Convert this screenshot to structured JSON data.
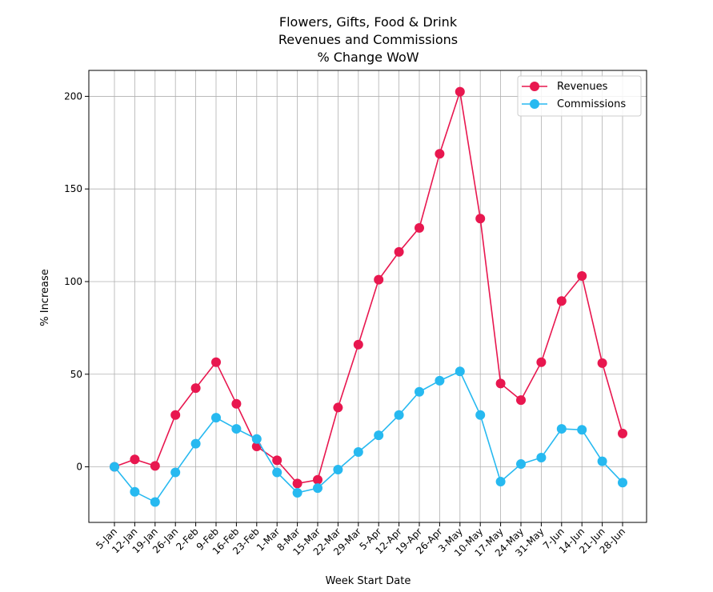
{
  "chart_data": {
    "type": "line",
    "title_lines": [
      "Flowers, Gifts, Food & Drink",
      "Revenues and Commissions",
      "% Change WoW"
    ],
    "xlabel": "Week Start Date",
    "ylabel": "% Increase",
    "categories": [
      "5-Jan",
      "12-Jan",
      "19-Jan",
      "26-Jan",
      "2-Feb",
      "9-Feb",
      "16-Feb",
      "23-Feb",
      "1-Mar",
      "8-Mar",
      "15-Mar",
      "22-Mar",
      "29-Mar",
      "5-Apr",
      "12-Apr",
      "19-Apr",
      "26-Apr",
      "3-May",
      "10-May",
      "17-May",
      "24-May",
      "31-May",
      "7-Jun",
      "14-Jun",
      "21-Jun",
      "28-Jun"
    ],
    "yticks": [
      0,
      50,
      100,
      150,
      200
    ],
    "ylim": [
      -30,
      214
    ],
    "grid": true,
    "legend_position": "top-right",
    "series": [
      {
        "name": "Revenues",
        "color": "#e8174f",
        "values": [
          0,
          4,
          0.5,
          28,
          42.5,
          56.5,
          34,
          11,
          3.5,
          -9,
          -7,
          32,
          66,
          101,
          116,
          129,
          169,
          202.5,
          134,
          45,
          36,
          56.5,
          89.5,
          103,
          56,
          18
        ]
      },
      {
        "name": "Commissions",
        "color": "#27b9f0",
        "values": [
          0,
          -13.5,
          -19,
          -3,
          12.5,
          26.5,
          20.5,
          15,
          -3,
          -14,
          -11.5,
          -1.5,
          8,
          17,
          28,
          40.5,
          46.5,
          51.5,
          28,
          -8,
          1.5,
          5,
          20.5,
          20,
          3,
          -8.5
        ]
      }
    ]
  }
}
